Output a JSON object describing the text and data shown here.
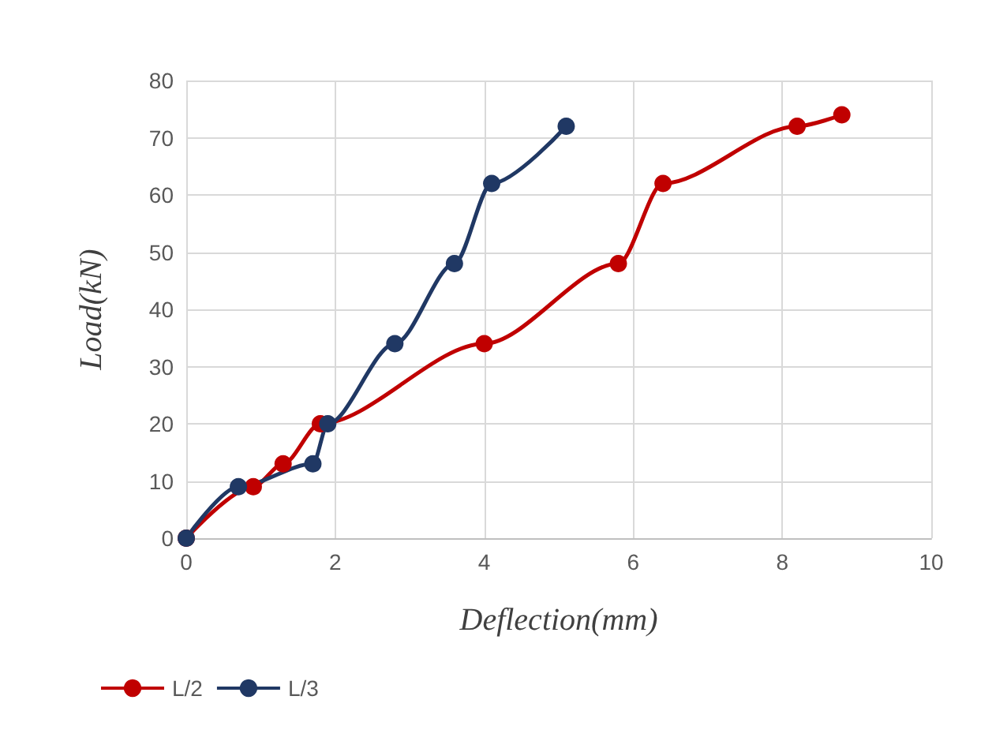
{
  "chart_data": {
    "type": "line",
    "xlabel": "Deflection(mm)",
    "ylabel": "Load(kN)",
    "xlim": [
      0,
      10
    ],
    "xticks": [
      0,
      2,
      4,
      6,
      8,
      10
    ],
    "ylim": [
      0,
      80
    ],
    "yticks": [
      0,
      10,
      20,
      30,
      40,
      50,
      60,
      70,
      80
    ],
    "grid": true,
    "legend": "bottom left",
    "marker": "circle",
    "line_style": "solid",
    "series": [
      {
        "name": "L/2",
        "color": "#c00000",
        "x": [
          0,
          0.9,
          1.3,
          1.8,
          4,
          5.8,
          6.4,
          8.2,
          8.8
        ],
        "values": [
          0,
          9,
          13,
          20,
          34,
          48,
          62,
          72,
          74
        ]
      },
      {
        "name": "L/3",
        "color": "#203864",
        "x": [
          0,
          0.7,
          1.7,
          1.9,
          2.8,
          3.6,
          4.1,
          5.1
        ],
        "values": [
          0,
          9,
          13,
          20,
          34,
          48,
          62,
          72
        ]
      }
    ]
  }
}
